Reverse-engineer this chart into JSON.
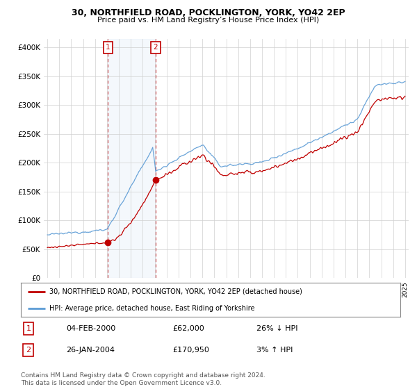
{
  "title": "30, NORTHFIELD ROAD, POCKLINGTON, YORK, YO42 2EP",
  "subtitle": "Price paid vs. HM Land Registry’s House Price Index (HPI)",
  "ylabel_ticks": [
    "£0",
    "£50K",
    "£100K",
    "£150K",
    "£200K",
    "£250K",
    "£300K",
    "£350K",
    "£400K"
  ],
  "ytick_vals": [
    0,
    50000,
    100000,
    150000,
    200000,
    250000,
    300000,
    350000,
    400000
  ],
  "ylim": [
    0,
    415000
  ],
  "xlim_start": 1994.7,
  "xlim_end": 2025.3,
  "hpi_color": "#5b9bd5",
  "price_color": "#c00000",
  "vline_color": "#c00000",
  "sale1_year": 2000.09,
  "sale1_price": 62000,
  "sale2_year": 2004.07,
  "sale2_price": 170950,
  "legend_line1": "30, NORTHFIELD ROAD, POCKLINGTON, YORK, YO42 2EP (detached house)",
  "legend_line2": "HPI: Average price, detached house, East Riding of Yorkshire",
  "table_row1": [
    "1",
    "04-FEB-2000",
    "£62,000",
    "26% ↓ HPI"
  ],
  "table_row2": [
    "2",
    "26-JAN-2004",
    "£170,950",
    "3% ↑ HPI"
  ],
  "footnote": "Contains HM Land Registry data © Crown copyright and database right 2024.\nThis data is licensed under the Open Government Licence v3.0.",
  "background_color": "#ffffff",
  "grid_color": "#d0d0d0"
}
